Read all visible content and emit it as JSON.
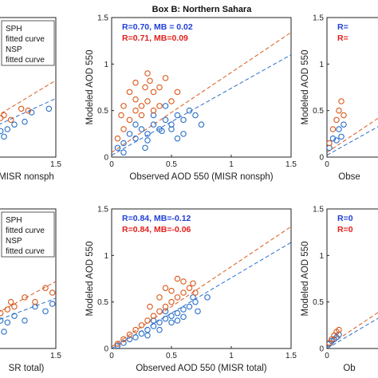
{
  "figure": {
    "title": "Box B: Northern Sahara",
    "colors": {
      "sph": "#2a6fc9",
      "nsp": "#d9591c",
      "stat_blue": "#1f3fd6",
      "stat_red": "#e0201c"
    }
  },
  "chart_data": [
    {
      "id": "top-left-partial",
      "type": "scatter",
      "title": "",
      "xlabel": "MISR nonsph",
      "ylabel": "",
      "xticks": [
        "1.5"
      ],
      "yticks": [],
      "legend": {
        "placement": "top-left",
        "entries": [
          "SPH",
          "fitted curve",
          "NSP",
          "fitted curve"
        ]
      },
      "stats": [],
      "fits": {
        "SPH": {
          "slope": 0.34,
          "intercept": 0.12
        },
        "NSP": {
          "slope": 0.45,
          "intercept": 0.15
        }
      },
      "series": [
        {
          "name": "SPH",
          "points": [
            [
              0.6,
              0.25
            ],
            [
              0.65,
              0.3
            ],
            [
              0.7,
              0.28
            ],
            [
              0.8,
              0.3
            ],
            [
              0.9,
              0.35
            ],
            [
              1.15,
              0.48
            ],
            [
              1.4,
              0.52
            ],
            [
              0.75,
              0.22
            ],
            [
              1.05,
              0.38
            ]
          ]
        },
        {
          "name": "NSP",
          "points": [
            [
              0.6,
              0.38
            ],
            [
              0.65,
              0.35
            ],
            [
              0.75,
              0.45
            ],
            [
              0.85,
              0.4
            ],
            [
              1.0,
              0.52
            ],
            [
              1.1,
              0.5
            ],
            [
              0.7,
              0.42
            ]
          ]
        }
      ]
    },
    {
      "id": "top-middle",
      "type": "scatter",
      "title": "Box B: Northern Sahara",
      "xlabel": "Observed AOD 550 (MISR nonsph)",
      "ylabel": "Modeled AOD 550",
      "xlim": [
        0,
        1.5
      ],
      "ylim": [
        0,
        1.5
      ],
      "xticks": [
        "0",
        "0.5",
        "1",
        "1.5"
      ],
      "yticks": [
        "0",
        "0.5",
        "1",
        "1.5"
      ],
      "stats": [
        "R=0.70, MB = 0.02",
        "R=0.71, MB=0.09"
      ],
      "fits": {
        "SPH": {
          "slope": 0.72,
          "intercept": 0.02
        },
        "NSP": {
          "slope": 0.86,
          "intercept": 0.05
        }
      },
      "series": [
        {
          "name": "SPH",
          "points": [
            [
              0.05,
              0.1
            ],
            [
              0.1,
              0.15
            ],
            [
              0.15,
              0.25
            ],
            [
              0.2,
              0.2
            ],
            [
              0.25,
              0.3
            ],
            [
              0.3,
              0.25
            ],
            [
              0.35,
              0.35
            ],
            [
              0.4,
              0.3
            ],
            [
              0.45,
              0.4
            ],
            [
              0.5,
              0.35
            ],
            [
              0.55,
              0.45
            ],
            [
              0.6,
              0.4
            ],
            [
              0.65,
              0.5
            ],
            [
              0.7,
              0.45
            ],
            [
              0.5,
              0.3
            ],
            [
              0.42,
              0.28
            ],
            [
              0.3,
              0.18
            ],
            [
              0.6,
              0.25
            ],
            [
              0.75,
              0.35
            ],
            [
              0.45,
              0.55
            ],
            [
              0.2,
              0.35
            ],
            [
              0.35,
              0.45
            ],
            [
              0.1,
              0.05
            ],
            [
              0.28,
              0.1
            ],
            [
              0.55,
              0.2
            ]
          ]
        },
        {
          "name": "NSP",
          "points": [
            [
              0.05,
              0.2
            ],
            [
              0.1,
              0.3
            ],
            [
              0.15,
              0.4
            ],
            [
              0.2,
              0.5
            ],
            [
              0.25,
              0.55
            ],
            [
              0.3,
              0.6
            ],
            [
              0.35,
              0.7
            ],
            [
              0.4,
              0.75
            ],
            [
              0.45,
              0.85
            ],
            [
              0.15,
              0.7
            ],
            [
              0.2,
              0.8
            ],
            [
              0.3,
              0.9
            ],
            [
              0.2,
              0.62
            ],
            [
              0.25,
              0.45
            ],
            [
              0.4,
              0.55
            ],
            [
              0.5,
              0.6
            ],
            [
              0.55,
              0.7
            ],
            [
              0.1,
              0.55
            ],
            [
              0.08,
              0.45
            ],
            [
              0.35,
              0.5
            ],
            [
              0.28,
              0.75
            ],
            [
              0.32,
              0.82
            ]
          ]
        }
      ]
    },
    {
      "id": "top-right-partial",
      "type": "scatter",
      "title": "",
      "xlabel": "Obse",
      "ylabel": "Modeled AOD 550",
      "xticks": [
        "0"
      ],
      "yticks": [
        "0",
        "0.5",
        "1",
        "1.5"
      ],
      "stats": [
        "R=",
        "R="
      ],
      "fits": {
        "SPH": {
          "slope": 0.72,
          "intercept": 0.02
        },
        "NSP": {
          "slope": 0.86,
          "intercept": 0.05
        }
      },
      "series": [
        {
          "name": "SPH",
          "points": [
            [
              0.02,
              0.1
            ],
            [
              0.05,
              0.2
            ],
            [
              0.08,
              0.18
            ],
            [
              0.1,
              0.3
            ],
            [
              0.12,
              0.22
            ],
            [
              0.14,
              0.35
            ]
          ]
        },
        {
          "name": "NSP",
          "points": [
            [
              0.02,
              0.15
            ],
            [
              0.05,
              0.3
            ],
            [
              0.08,
              0.4
            ],
            [
              0.1,
              0.5
            ],
            [
              0.12,
              0.6
            ],
            [
              0.14,
              0.45
            ]
          ]
        }
      ]
    },
    {
      "id": "bottom-left-partial",
      "type": "scatter",
      "title": "",
      "xlabel": "SR total)",
      "ylabel": "",
      "xticks": [
        "1.5"
      ],
      "yticks": [],
      "legend": {
        "placement": "top-left",
        "entries": [
          "SPH",
          "fitted curve",
          "NSP",
          "fitted curve"
        ]
      },
      "stats": [],
      "fits": {
        "SPH": {
          "slope": 0.28,
          "intercept": 0.12
        },
        "NSP": {
          "slope": 0.4,
          "intercept": 0.12
        }
      },
      "series": [
        {
          "name": "SPH",
          "points": [
            [
              0.6,
              0.2
            ],
            [
              0.65,
              0.25
            ],
            [
              0.7,
              0.3
            ],
            [
              0.8,
              0.28
            ],
            [
              0.9,
              0.35
            ],
            [
              1.05,
              0.3
            ],
            [
              1.2,
              0.45
            ],
            [
              1.35,
              0.4
            ],
            [
              1.45,
              0.48
            ],
            [
              0.75,
              0.18
            ]
          ]
        },
        {
          "name": "NSP",
          "points": [
            [
              0.6,
              0.3
            ],
            [
              0.7,
              0.38
            ],
            [
              0.8,
              0.42
            ],
            [
              0.9,
              0.45
            ],
            [
              1.05,
              0.55
            ],
            [
              1.2,
              0.5
            ],
            [
              1.35,
              0.65
            ],
            [
              1.45,
              0.6
            ],
            [
              0.85,
              0.5
            ]
          ]
        }
      ]
    },
    {
      "id": "bottom-middle",
      "type": "scatter",
      "title": "",
      "xlabel": "Observed AOD 550 (MISR total)",
      "ylabel": "Modeled AOD 550",
      "xlim": [
        0,
        1.5
      ],
      "ylim": [
        0,
        1.5
      ],
      "xticks": [
        "0",
        "0.5",
        "1",
        "1.5"
      ],
      "yticks": [
        "0",
        "0.5",
        "1",
        "1.5"
      ],
      "stats": [
        "R=0.84, MB=-0.12",
        "R=0.84, MB=-0.06"
      ],
      "fits": {
        "SPH": {
          "slope": 0.76,
          "intercept": 0.0
        },
        "NSP": {
          "slope": 0.86,
          "intercept": 0.02
        }
      },
      "series": [
        {
          "name": "SPH",
          "points": [
            [
              0.05,
              0.03
            ],
            [
              0.1,
              0.06
            ],
            [
              0.15,
              0.1
            ],
            [
              0.2,
              0.12
            ],
            [
              0.25,
              0.16
            ],
            [
              0.3,
              0.2
            ],
            [
              0.35,
              0.24
            ],
            [
              0.4,
              0.28
            ],
            [
              0.45,
              0.32
            ],
            [
              0.5,
              0.35
            ],
            [
              0.55,
              0.38
            ],
            [
              0.6,
              0.42
            ],
            [
              0.65,
              0.45
            ],
            [
              0.7,
              0.5
            ],
            [
              0.6,
              0.34
            ],
            [
              0.5,
              0.28
            ],
            [
              0.4,
              0.2
            ],
            [
              0.72,
              0.4
            ],
            [
              0.3,
              0.14
            ],
            [
              0.55,
              0.3
            ],
            [
              0.8,
              0.55
            ],
            [
              0.35,
              0.3
            ],
            [
              0.45,
              0.4
            ],
            [
              0.68,
              0.55
            ]
          ]
        },
        {
          "name": "NSP",
          "points": [
            [
              0.05,
              0.05
            ],
            [
              0.1,
              0.1
            ],
            [
              0.15,
              0.15
            ],
            [
              0.2,
              0.2
            ],
            [
              0.25,
              0.25
            ],
            [
              0.3,
              0.3
            ],
            [
              0.35,
              0.35
            ],
            [
              0.4,
              0.4
            ],
            [
              0.45,
              0.45
            ],
            [
              0.5,
              0.5
            ],
            [
              0.55,
              0.55
            ],
            [
              0.6,
              0.6
            ],
            [
              0.65,
              0.65
            ],
            [
              0.7,
              0.6
            ],
            [
              0.45,
              0.65
            ],
            [
              0.55,
              0.75
            ],
            [
              0.6,
              0.72
            ],
            [
              0.68,
              0.7
            ],
            [
              0.4,
              0.55
            ],
            [
              0.32,
              0.45
            ],
            [
              0.5,
              0.62
            ]
          ]
        }
      ]
    },
    {
      "id": "bottom-right-partial",
      "type": "scatter",
      "title": "",
      "xlabel": "Ob",
      "ylabel": "Modeled AOD 550",
      "xticks": [
        "0"
      ],
      "yticks": [
        "0",
        "0.5",
        "1",
        "1.5"
      ],
      "stats": [
        "R=0",
        "R=0"
      ],
      "fits": {
        "SPH": {
          "slope": 0.76,
          "intercept": 0.0
        },
        "NSP": {
          "slope": 0.86,
          "intercept": 0.02
        }
      },
      "series": [
        {
          "name": "SPH",
          "points": [
            [
              0.02,
              0.05
            ],
            [
              0.04,
              0.08
            ],
            [
              0.06,
              0.1
            ],
            [
              0.08,
              0.12
            ],
            [
              0.1,
              0.15
            ]
          ]
        },
        {
          "name": "NSP",
          "points": [
            [
              0.02,
              0.06
            ],
            [
              0.04,
              0.1
            ],
            [
              0.06,
              0.14
            ],
            [
              0.08,
              0.18
            ],
            [
              0.1,
              0.2
            ]
          ]
        }
      ]
    }
  ]
}
